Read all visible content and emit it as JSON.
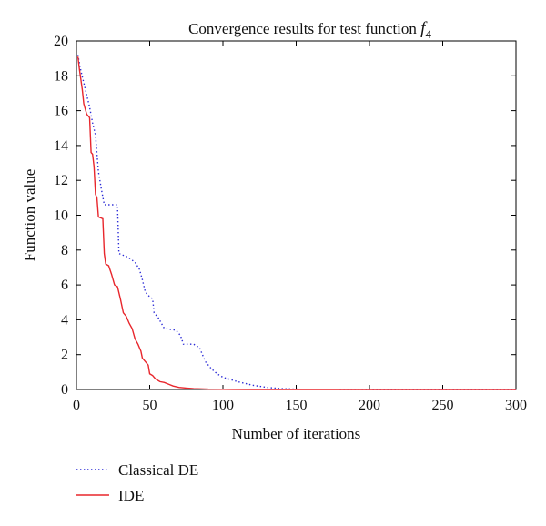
{
  "chart_data": {
    "type": "line",
    "title": {
      "text": "Convergence results for test function ",
      "symbol": "f",
      "subscript": "4"
    },
    "xlabel": "Number of iterations",
    "ylabel": "Function value",
    "xlim": [
      0,
      300
    ],
    "ylim": [
      0,
      20
    ],
    "xticks": [
      0,
      50,
      100,
      150,
      200,
      250,
      300
    ],
    "yticks": [
      0,
      2,
      4,
      6,
      8,
      10,
      12,
      14,
      16,
      18,
      20
    ],
    "grid": false,
    "legend_position": "below-left",
    "series": [
      {
        "name": "Classical DE",
        "style": "dotted",
        "color": "#2b2bd6",
        "points": [
          [
            1,
            19.2
          ],
          [
            3,
            18.3
          ],
          [
            5,
            17.6
          ],
          [
            7,
            16.9
          ],
          [
            9,
            16.2
          ],
          [
            11,
            15.3
          ],
          [
            13,
            14.6
          ],
          [
            15,
            12.5
          ],
          [
            17,
            11.5
          ],
          [
            19,
            10.6
          ],
          [
            28,
            10.6
          ],
          [
            29,
            7.8
          ],
          [
            35,
            7.6
          ],
          [
            40,
            7.3
          ],
          [
            43,
            6.9
          ],
          [
            45,
            6.3
          ],
          [
            47,
            5.6
          ],
          [
            49,
            5.4
          ],
          [
            52,
            5.2
          ],
          [
            53,
            4.4
          ],
          [
            56,
            4.1
          ],
          [
            60,
            3.5
          ],
          [
            68,
            3.4
          ],
          [
            71,
            3.1
          ],
          [
            73,
            2.6
          ],
          [
            80,
            2.6
          ],
          [
            84,
            2.4
          ],
          [
            88,
            1.6
          ],
          [
            92,
            1.2
          ],
          [
            96,
            0.9
          ],
          [
            100,
            0.7
          ],
          [
            110,
            0.45
          ],
          [
            120,
            0.25
          ],
          [
            130,
            0.12
          ],
          [
            140,
            0.05
          ],
          [
            150,
            0.02
          ],
          [
            170,
            0.01
          ],
          [
            200,
            0.0
          ],
          [
            300,
            0.0
          ]
        ]
      },
      {
        "name": "IDE",
        "style": "solid",
        "color": "#e8262c",
        "points": [
          [
            1,
            19.1
          ],
          [
            2,
            18.4
          ],
          [
            4,
            17.2
          ],
          [
            5,
            16.4
          ],
          [
            7,
            15.8
          ],
          [
            9,
            15.6
          ],
          [
            10,
            13.6
          ],
          [
            11,
            13.5
          ],
          [
            12,
            12.8
          ],
          [
            13,
            11.2
          ],
          [
            14,
            11.0
          ],
          [
            15,
            9.9
          ],
          [
            18,
            9.8
          ],
          [
            19,
            7.8
          ],
          [
            20,
            7.2
          ],
          [
            22,
            7.1
          ],
          [
            24,
            6.6
          ],
          [
            26,
            6.0
          ],
          [
            28,
            5.9
          ],
          [
            30,
            5.2
          ],
          [
            32,
            4.4
          ],
          [
            34,
            4.2
          ],
          [
            36,
            3.8
          ],
          [
            38,
            3.5
          ],
          [
            40,
            2.9
          ],
          [
            42,
            2.6
          ],
          [
            44,
            2.2
          ],
          [
            45,
            1.8
          ],
          [
            47,
            1.6
          ],
          [
            49,
            1.4
          ],
          [
            50,
            0.9
          ],
          [
            52,
            0.8
          ],
          [
            54,
            0.6
          ],
          [
            57,
            0.45
          ],
          [
            60,
            0.4
          ],
          [
            63,
            0.3
          ],
          [
            66,
            0.2
          ],
          [
            70,
            0.12
          ],
          [
            75,
            0.08
          ],
          [
            80,
            0.05
          ],
          [
            90,
            0.02
          ],
          [
            100,
            0.01
          ],
          [
            120,
            0.0
          ],
          [
            300,
            0.0
          ]
        ]
      }
    ]
  }
}
